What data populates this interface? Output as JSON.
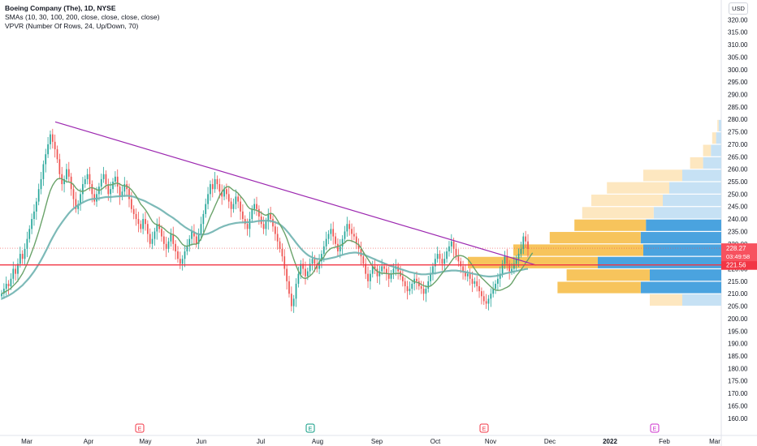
{
  "legend": {
    "title": "Boeing Company (The), 1D, NYSE",
    "sma": "SMAs (10, 30, 100, 200, close, close, close, close)",
    "vpvr": "VPVR (Number Of Rows, 24, Up/Down, 70)"
  },
  "currency_label": "USD",
  "colors": {
    "up": "#26a69a",
    "down": "#ef5350",
    "sma10": "#6aa36a",
    "sma30": "#6fb3b0",
    "trendline": "#9c27b0",
    "support": "#f23645",
    "vp_up": "#4aa3df",
    "vp_down": "#f7c45c",
    "vp_up_light": "#c6e1f4",
    "vp_down_light": "#fde7c0"
  },
  "price_labels": {
    "current": "228.27",
    "countdown": "03:49:58",
    "support": "221.56"
  },
  "event_markers": [
    "E",
    "E",
    "E",
    "E"
  ],
  "chart_data": {
    "type": "candlestick",
    "symbol": "Boeing Company (The), 1D, NYSE",
    "x_ticks": [
      "Mar",
      "Apr",
      "May",
      "Jun",
      "Jul",
      "Aug",
      "Sep",
      "Oct",
      "Nov",
      "Dec",
      "2022",
      "Feb",
      "Mar"
    ],
    "y_ticks": [
      160,
      165,
      170,
      175,
      180,
      185,
      190,
      195,
      200,
      205,
      210,
      215,
      220,
      225,
      230,
      235,
      240,
      245,
      250,
      255,
      260,
      265,
      270,
      275,
      280,
      285,
      290,
      295,
      300,
      305,
      310,
      315,
      320
    ],
    "y_range": [
      157,
      325
    ],
    "closes": [
      210,
      212,
      214,
      213,
      216,
      220,
      218,
      222,
      226,
      224,
      228,
      232,
      236,
      240,
      243,
      247,
      252,
      256,
      262,
      266,
      270,
      274,
      271,
      268,
      264,
      258,
      254,
      256,
      260,
      257,
      252,
      248,
      244,
      246,
      250,
      254,
      256,
      258,
      254,
      250,
      247,
      250,
      253,
      256,
      258,
      254,
      250,
      252,
      255,
      257,
      253,
      249,
      251,
      254,
      252,
      248,
      244,
      242,
      240,
      238,
      236,
      240,
      238,
      234,
      230,
      232,
      235,
      238,
      236,
      233,
      230,
      228,
      231,
      234,
      230,
      227,
      224,
      222,
      224,
      227,
      229,
      232,
      235,
      233,
      230,
      234,
      238,
      242,
      246,
      250,
      254,
      252,
      256,
      254,
      251,
      249,
      252,
      250,
      247,
      244,
      246,
      249,
      247,
      243,
      240,
      238,
      236,
      240,
      244,
      246,
      244,
      241,
      238,
      236,
      239,
      242,
      240,
      237,
      234,
      231,
      228,
      225,
      220,
      215,
      210,
      205,
      208,
      214,
      218,
      222,
      220,
      217,
      219,
      222,
      224,
      222,
      220,
      223,
      226,
      229,
      232,
      234,
      236,
      233,
      230,
      227,
      229,
      232,
      235,
      238,
      236,
      234,
      233,
      230,
      228,
      225,
      222,
      218,
      215,
      218,
      221,
      220,
      217,
      219,
      221,
      220,
      218,
      216,
      218,
      220,
      221,
      219,
      217,
      215,
      213,
      211,
      212,
      214,
      216,
      215,
      213,
      212,
      210,
      212,
      215,
      218,
      221,
      224,
      226,
      224,
      222,
      224,
      227,
      229,
      231,
      228,
      225,
      223,
      221,
      219,
      217,
      218,
      216,
      214,
      215,
      213,
      211,
      209,
      207,
      206,
      208,
      210,
      212,
      214,
      216,
      218,
      222,
      225,
      222,
      219,
      220,
      222,
      224,
      226,
      228,
      233,
      231,
      228
    ],
    "sma10": [
      210,
      210.5,
      211,
      211.6,
      212.2,
      213.2,
      214.1,
      215.2,
      216.6,
      218.1,
      220,
      222,
      224.3,
      226.7,
      229.2,
      232,
      235,
      238.2,
      241.5,
      245,
      248.5,
      251.4,
      253.5,
      255,
      256,
      256.3,
      256.1,
      255.5,
      255,
      254.8,
      254.6,
      253.8,
      252.5,
      251.6,
      251.2,
      251.1,
      251.4,
      252,
      252.5,
      252.6,
      252.3,
      251.8,
      251.5,
      251.8,
      252.6,
      253.4,
      253.7,
      253.7,
      253.9,
      254.3,
      254.4,
      254,
      253.5,
      253.3,
      253.2,
      252.6,
      251.7,
      250.5,
      249.2,
      247.6,
      245.9,
      244.9,
      243.7,
      242.3,
      240.6,
      239,
      238.1,
      237.7,
      237.3,
      236.8,
      236.2,
      235.3,
      234.6,
      234.1,
      233.7,
      233.2,
      232.3,
      231,
      229.8,
      229.2,
      229.1,
      229.4,
      229.8,
      229.9,
      229.9,
      230.6,
      232,
      234.1,
      236.3,
      238.6,
      241,
      243,
      245.1,
      247.2,
      249.3,
      250.8,
      252.1,
      252.9,
      253,
      252.3,
      251.5,
      251.2,
      250.3,
      249.2,
      248.1,
      246.8,
      245.2,
      244.2,
      243.9,
      243.7,
      243.5,
      243,
      242.5,
      241.8,
      241.5,
      241.9,
      242.3,
      242,
      240.9,
      239.4,
      237.8,
      236.2,
      234.4,
      232.2,
      229.5,
      226.6,
      223.8,
      221.3,
      219.1,
      217.4,
      216.4,
      216.1,
      216.5,
      217.2,
      218,
      219.5,
      221.3,
      222.8,
      223.8,
      224.8,
      226.4,
      227.4,
      228.2,
      228.5,
      228.7,
      229,
      229.3,
      229.8,
      230.5,
      231.4,
      231.4,
      231.2,
      230.8,
      230.3,
      229.6,
      228.4,
      226.8,
      225.2,
      223.9,
      222.4,
      221,
      219.8,
      219,
      218.5,
      218.2,
      218.2,
      218.1,
      218,
      217.9,
      218,
      218.1,
      218.2,
      218.1,
      217.7,
      217.2,
      216.6,
      215.9,
      215.3,
      214.8,
      214.6,
      214.3,
      213.7,
      213.3,
      212.9,
      212.8,
      213.1,
      213.8,
      214.7,
      215.8,
      217,
      218.2,
      219.3,
      220.5,
      221.7,
      223.1,
      224.4,
      225,
      225.3,
      225.3,
      225.1,
      224.6,
      223.9,
      222.8,
      221.4,
      220,
      218.6,
      217.5,
      216.4,
      215.5,
      214.6,
      213.7,
      212.8,
      212,
      211.5,
      211.3,
      211.4,
      211.7,
      212.2,
      212.6,
      213.2,
      214.2,
      215.7,
      217.2,
      218.4,
      219.6,
      220.9,
      222.3,
      223.6,
      225.1,
      226.4
    ],
    "sma30": [
      208,
      208.4,
      208.8,
      209.3,
      209.8,
      210.4,
      211.1,
      211.8,
      212.6,
      213.4,
      214.4,
      215.4,
      216.5,
      217.7,
      219,
      220.4,
      221.9,
      223.5,
      225.2,
      227,
      228.9,
      230.8,
      232.6,
      234.3,
      235.9,
      237.3,
      238.6,
      239.9,
      241.1,
      242.3,
      243.3,
      244.2,
      244.9,
      245.5,
      246.1,
      246.6,
      247.1,
      247.5,
      247.8,
      248,
      248.1,
      248.2,
      248.3,
      248.5,
      248.7,
      248.8,
      248.8,
      248.8,
      248.9,
      249,
      249.1,
      249.1,
      249.2,
      249.3,
      249.3,
      249.3,
      249.1,
      248.9,
      248.6,
      248.2,
      247.8,
      247.5,
      247.1,
      246.6,
      246.1,
      245.6,
      245.1,
      244.6,
      244.1,
      243.5,
      242.9,
      242.2,
      241.6,
      241,
      240.4,
      239.7,
      239,
      238.2,
      237.5,
      236.8,
      236.2,
      235.7,
      235.2,
      234.7,
      234.2,
      233.9,
      233.8,
      233.8,
      233.9,
      234.1,
      234.5,
      234.9,
      235.4,
      235.9,
      236.4,
      236.8,
      237.2,
      237.5,
      237.8,
      238,
      238.2,
      238.4,
      238.5,
      238.6,
      238.6,
      238.7,
      238.7,
      238.8,
      238.8,
      238.9,
      239.1,
      239.2,
      239.3,
      239.3,
      239.3,
      239.3,
      239.2,
      239,
      238.7,
      238.3,
      237.8,
      237.1,
      236.2,
      235.2,
      234.1,
      232.9,
      231.7,
      230.5,
      229.3,
      228.2,
      227.2,
      226.3,
      225.6,
      225,
      224.6,
      224.2,
      224,
      223.9,
      223.8,
      223.8,
      223.9,
      224.1,
      224.3,
      224.5,
      224.7,
      225,
      225.3,
      225.6,
      225.9,
      226.1,
      226.3,
      226.4,
      226.5,
      226.5,
      226.3,
      226.1,
      225.8,
      225.4,
      225,
      224.6,
      224.2,
      223.8,
      223.4,
      223,
      222.6,
      222.2,
      221.8,
      221.4,
      221.1,
      220.8,
      220.5,
      220.2,
      219.9,
      219.6,
      219.3,
      219,
      218.7,
      218.5,
      218.3,
      218.1,
      217.9,
      217.8,
      217.8,
      217.8,
      217.9,
      218,
      218.1,
      218.2,
      218.4,
      218.6,
      218.8,
      219,
      219.1,
      219.2,
      219.3,
      219.3,
      219.3,
      219.2,
      219.1,
      218.9,
      218.7,
      218.5,
      218.3,
      218.1,
      217.9,
      217.7,
      217.5,
      217.3,
      217.1,
      217,
      216.9,
      216.9,
      217,
      217.1,
      217.3,
      217.5,
      217.8,
      218.1,
      218.3,
      218.5,
      218.7,
      218.9,
      219.1,
      219.3,
      219.5,
      219.7,
      219.9,
      220
    ],
    "trendline": {
      "start_x": "Mar 16",
      "start_price": 279,
      "end_x": "Nov 19",
      "end_price": 221.5
    },
    "support_line": 221.56,
    "current_price": 228.27,
    "volume_profile_rows": [
      {
        "price": 207.5,
        "up": 30,
        "down": 25
      },
      {
        "price": 212.5,
        "up": 62,
        "down": 64
      },
      {
        "price": 217.5,
        "up": 55,
        "down": 64
      },
      {
        "price": 222.5,
        "up": 95,
        "down": 100
      },
      {
        "price": 227.5,
        "up": 60,
        "down": 100
      },
      {
        "price": 232.5,
        "up": 62,
        "down": 70
      },
      {
        "price": 237.5,
        "up": 58,
        "down": 55
      },
      {
        "price": 242.5,
        "up": 52,
        "down": 55
      },
      {
        "price": 247.5,
        "up": 45,
        "down": 55
      },
      {
        "price": 252.5,
        "up": 40,
        "down": 48
      },
      {
        "price": 257.5,
        "up": 30,
        "down": 30
      },
      {
        "price": 262.5,
        "up": 14,
        "down": 10
      },
      {
        "price": 267.5,
        "up": 8,
        "down": 6
      },
      {
        "price": 272.5,
        "up": 4,
        "down": 3
      },
      {
        "price": 277.5,
        "up": 2,
        "down": 1
      }
    ]
  }
}
